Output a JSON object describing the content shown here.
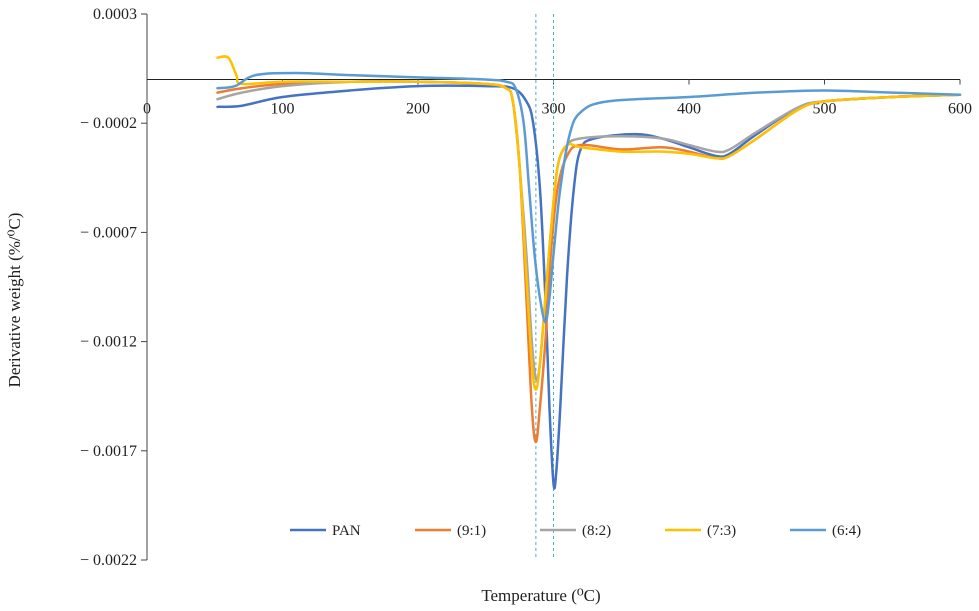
{
  "chart_data": {
    "type": "line",
    "title": "",
    "xlabel": "Temperature (⁰C)",
    "ylabel": "Derivative weight (%/⁰C)",
    "xlim": [
      0,
      600
    ],
    "ylim": [
      -0.0022,
      0.0003
    ],
    "xticks": [
      0,
      100,
      200,
      300,
      400,
      500,
      600
    ],
    "xtick_labels": [
      "0",
      "100",
      "200",
      "300",
      "400",
      "500",
      "600"
    ],
    "yticks": [
      0.0003,
      -0.0002,
      -0.0007,
      -0.0012,
      -0.0017,
      -0.0022
    ],
    "ytick_labels": [
      "0.0003",
      "− 0.0002",
      "− 0.0007",
      "− 0.0012",
      "− 0.0017",
      "− 0.0022"
    ],
    "reference_lines_x": [
      287,
      300
    ],
    "legend_position": "bottom-inside",
    "series": [
      {
        "name": "PAN",
        "color": "#4472c4",
        "points": [
          [
            52,
            -0.000125
          ],
          [
            70,
            -0.00012
          ],
          [
            100,
            -8e-05
          ],
          [
            150,
            -5e-05
          ],
          [
            200,
            -3e-05
          ],
          [
            250,
            -3e-05
          ],
          [
            270,
            -4e-05
          ],
          [
            280,
            -0.0001
          ],
          [
            285,
            -0.0002
          ],
          [
            290,
            -0.0005
          ],
          [
            294,
            -0.001
          ],
          [
            297,
            -0.0015
          ],
          [
            300,
            -0.00185
          ],
          [
            302,
            -0.0018
          ],
          [
            305,
            -0.0015
          ],
          [
            310,
            -0.0009
          ],
          [
            315,
            -0.0005
          ],
          [
            320,
            -0.00032
          ],
          [
            330,
            -0.00027
          ],
          [
            360,
            -0.00025
          ],
          [
            380,
            -0.00027
          ],
          [
            400,
            -0.00031
          ],
          [
            420,
            -0.00035
          ],
          [
            430,
            -0.00034
          ],
          [
            450,
            -0.00025
          ],
          [
            480,
            -0.00013
          ],
          [
            500,
            -0.0001
          ],
          [
            550,
            -8e-05
          ],
          [
            600,
            -7e-05
          ]
        ]
      },
      {
        "name": "(9:1)",
        "color": "#ed7d31",
        "points": [
          [
            52,
            -6e-05
          ],
          [
            70,
            -4e-05
          ],
          [
            100,
            -2e-05
          ],
          [
            150,
            -1e-05
          ],
          [
            200,
            -1e-05
          ],
          [
            250,
            -2e-05
          ],
          [
            265,
            -4e-05
          ],
          [
            270,
            -0.0001
          ],
          [
            275,
            -0.0004
          ],
          [
            280,
            -0.001
          ],
          [
            284,
            -0.0015
          ],
          [
            287,
            -0.00166
          ],
          [
            290,
            -0.0015
          ],
          [
            294,
            -0.0012
          ],
          [
            298,
            -0.0008
          ],
          [
            303,
            -0.0005
          ],
          [
            310,
            -0.00035
          ],
          [
            320,
            -0.0003
          ],
          [
            350,
            -0.00032
          ],
          [
            380,
            -0.00031
          ],
          [
            400,
            -0.00033
          ],
          [
            420,
            -0.00036
          ],
          [
            430,
            -0.00035
          ],
          [
            450,
            -0.00027
          ],
          [
            480,
            -0.00014
          ],
          [
            500,
            -0.0001
          ],
          [
            550,
            -8e-05
          ],
          [
            600,
            -7e-05
          ]
        ]
      },
      {
        "name": "(8:2)",
        "color": "#a5a5a5",
        "points": [
          [
            52,
            -9e-05
          ],
          [
            70,
            -6e-05
          ],
          [
            100,
            -3e-05
          ],
          [
            150,
            -1e-05
          ],
          [
            200,
            -1e-05
          ],
          [
            250,
            -2e-05
          ],
          [
            265,
            -4e-05
          ],
          [
            270,
            -0.0001
          ],
          [
            275,
            -0.0004
          ],
          [
            280,
            -0.0008
          ],
          [
            284,
            -0.0012
          ],
          [
            287,
            -0.00137
          ],
          [
            290,
            -0.0013
          ],
          [
            294,
            -0.001
          ],
          [
            298,
            -0.0007
          ],
          [
            303,
            -0.0004
          ],
          [
            310,
            -0.0003
          ],
          [
            320,
            -0.00027
          ],
          [
            350,
            -0.00026
          ],
          [
            380,
            -0.00027
          ],
          [
            400,
            -0.0003
          ],
          [
            420,
            -0.00033
          ],
          [
            430,
            -0.00032
          ],
          [
            450,
            -0.00024
          ],
          [
            480,
            -0.00013
          ],
          [
            500,
            -0.0001
          ],
          [
            550,
            -8e-05
          ],
          [
            600,
            -7e-05
          ]
        ]
      },
      {
        "name": "(7:3)",
        "color": "#ffc000",
        "points": [
          [
            52,
            0.0001
          ],
          [
            60,
            0.0001
          ],
          [
            66,
            2e-05
          ],
          [
            70,
            -2e-05
          ],
          [
            100,
            -1e-05
          ],
          [
            150,
            -1e-05
          ],
          [
            200,
            -1e-05
          ],
          [
            250,
            -2e-05
          ],
          [
            265,
            -4e-05
          ],
          [
            270,
            -0.0001
          ],
          [
            275,
            -0.0004
          ],
          [
            280,
            -0.0009
          ],
          [
            284,
            -0.0013
          ],
          [
            287,
            -0.00142
          ],
          [
            290,
            -0.0013
          ],
          [
            294,
            -0.001
          ],
          [
            298,
            -0.0007
          ],
          [
            303,
            -0.0004
          ],
          [
            310,
            -0.0003
          ],
          [
            320,
            -0.00031
          ],
          [
            350,
            -0.00033
          ],
          [
            380,
            -0.00033
          ],
          [
            400,
            -0.00034
          ],
          [
            420,
            -0.00036
          ],
          [
            430,
            -0.00035
          ],
          [
            450,
            -0.00027
          ],
          [
            480,
            -0.00014
          ],
          [
            500,
            -0.0001
          ],
          [
            550,
            -8e-05
          ],
          [
            600,
            -7e-05
          ]
        ]
      },
      {
        "name": "(6:4)",
        "color": "#5b9bd5",
        "points": [
          [
            52,
            -4e-05
          ],
          [
            65,
            -3e-05
          ],
          [
            80,
            2e-05
          ],
          [
            110,
            3e-05
          ],
          [
            150,
            2e-05
          ],
          [
            200,
            1e-05
          ],
          [
            250,
            0.0
          ],
          [
            265,
            -1e-05
          ],
          [
            272,
            -4e-05
          ],
          [
            278,
            -0.0002
          ],
          [
            282,
            -0.0005
          ],
          [
            286,
            -0.0008
          ],
          [
            290,
            -0.001
          ],
          [
            294,
            -0.00111
          ],
          [
            297,
            -0.001
          ],
          [
            300,
            -0.0008
          ],
          [
            305,
            -0.0005
          ],
          [
            312,
            -0.00025
          ],
          [
            320,
            -0.00015
          ],
          [
            340,
            -0.0001
          ],
          [
            400,
            -8e-05
          ],
          [
            450,
            -6e-05
          ],
          [
            500,
            -5e-05
          ],
          [
            550,
            -6e-05
          ],
          [
            600,
            -7e-05
          ]
        ]
      }
    ]
  }
}
